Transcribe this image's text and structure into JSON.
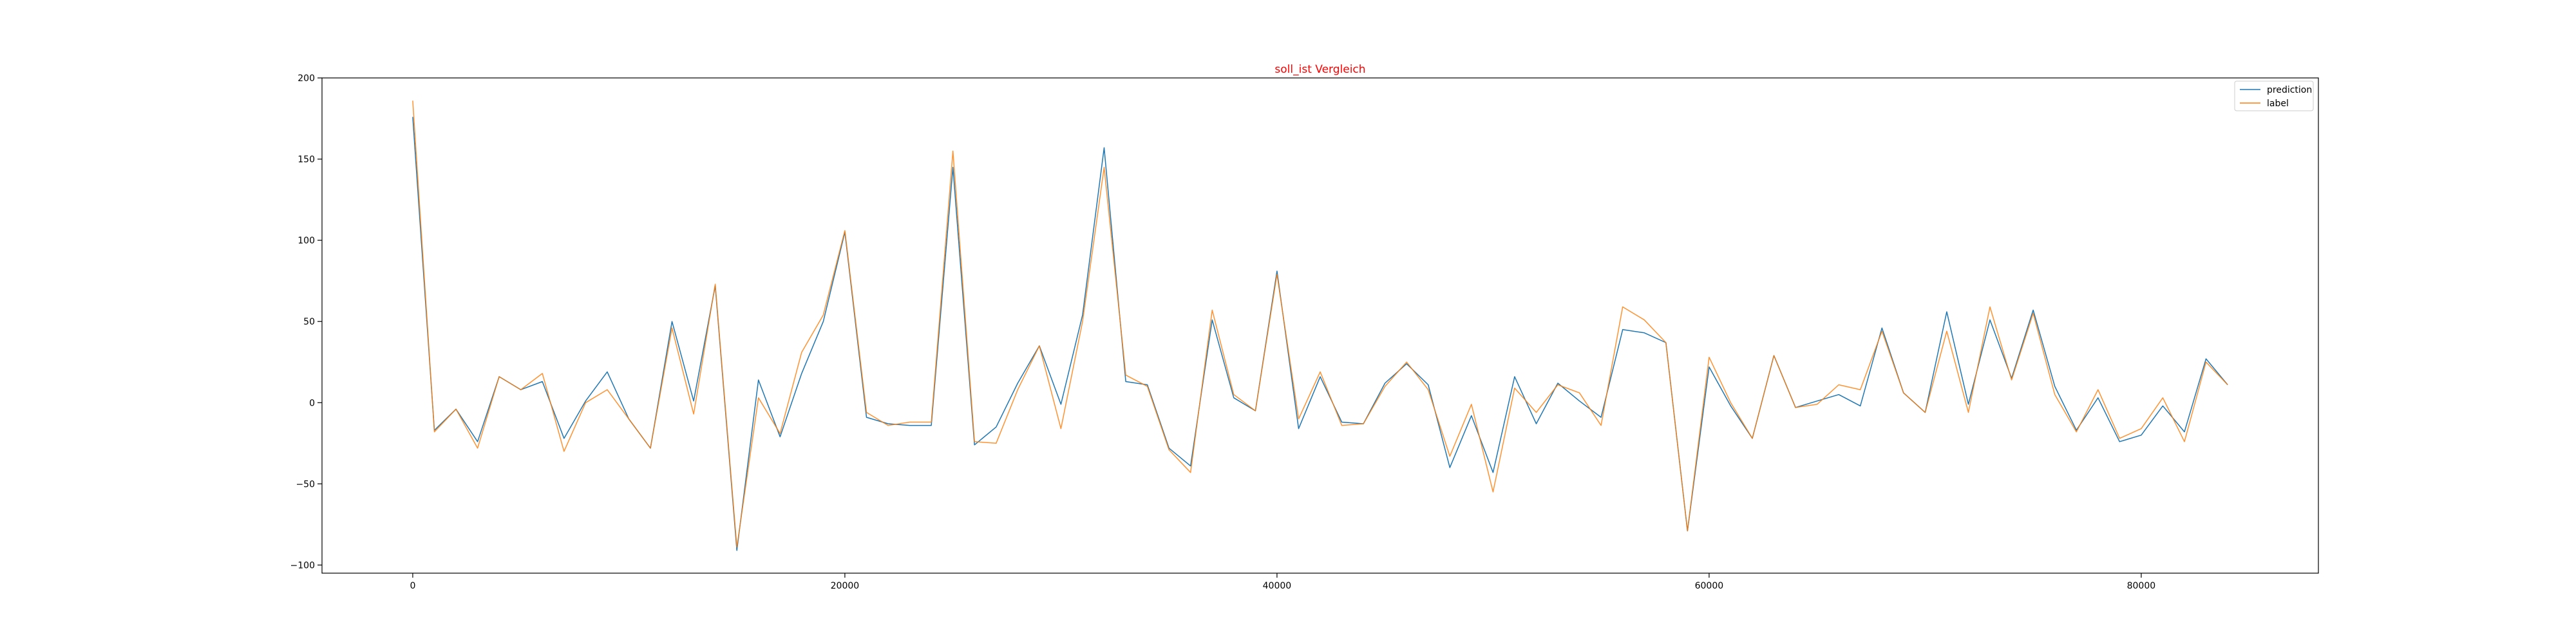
{
  "chart_data": {
    "type": "line",
    "title": "soll_ist Vergleich",
    "xlabel": "",
    "ylabel": "",
    "xlim": [
      -4200,
      88200
    ],
    "ylim": [
      -105,
      200
    ],
    "xticks": [
      0,
      20000,
      40000,
      60000,
      80000
    ],
    "yticks": [
      -100,
      -50,
      0,
      50,
      100,
      150,
      200
    ],
    "grid": false,
    "legend_position": "top-right",
    "x": [
      0,
      1000,
      2000,
      3000,
      4000,
      5000,
      6000,
      7000,
      8000,
      9000,
      10000,
      11000,
      12000,
      13000,
      14000,
      15000,
      16000,
      17000,
      18000,
      19000,
      20000,
      21000,
      22000,
      23000,
      24000,
      25000,
      26000,
      27000,
      28000,
      29000,
      30000,
      31000,
      32000,
      33000,
      34000,
      35000,
      36000,
      37000,
      38000,
      39000,
      40000,
      41000,
      42000,
      43000,
      44000,
      45000,
      46000,
      47000,
      48000,
      49000,
      50000,
      51000,
      52000,
      53000,
      54000,
      55000,
      56000,
      57000,
      58000,
      59000,
      60000,
      61000,
      62000,
      63000,
      64000,
      65000,
      66000,
      67000,
      68000,
      69000,
      70000,
      71000,
      72000,
      73000,
      74000,
      75000,
      76000,
      77000,
      78000,
      79000,
      80000,
      81000,
      82000,
      83000,
      84000
    ],
    "series": [
      {
        "name": "prediction",
        "color": "#1f77b4",
        "values": [
          176,
          -17,
          -4,
          -24,
          16,
          8,
          13,
          -22,
          1,
          19,
          -10,
          -28,
          50,
          1,
          72,
          -91,
          14,
          -21,
          18,
          50,
          105,
          -9,
          -13,
          -14,
          -14,
          145,
          -26,
          -15,
          12,
          35,
          -1,
          54,
          157,
          13,
          11,
          -28,
          -39,
          51,
          3,
          -5,
          81,
          -16,
          16,
          -12,
          -13,
          12,
          24,
          11,
          -40,
          -8,
          -43,
          16,
          -13,
          12,
          1,
          -9,
          45,
          43,
          37,
          -79,
          22,
          -2,
          -22,
          29,
          -3,
          1,
          5,
          -2,
          46,
          6,
          -6,
          56,
          -1,
          51,
          15,
          57,
          10,
          -17,
          3,
          -24,
          -20,
          -2,
          -18,
          27,
          11
        ]
      },
      {
        "name": "label",
        "color": "#ff7f0e",
        "values": [
          186,
          -18,
          -4,
          -28,
          16,
          8,
          18,
          -30,
          0,
          8,
          -10,
          -28,
          46,
          -7,
          73,
          -89,
          3,
          -19,
          31,
          54,
          106,
          -6,
          -14,
          -12,
          -12,
          155,
          -24,
          -25,
          8,
          35,
          -16,
          50,
          145,
          17,
          10,
          -29,
          -43,
          57,
          5,
          -5,
          79,
          -10,
          19,
          -14,
          -13,
          10,
          25,
          8,
          -33,
          -1,
          -55,
          9,
          -6,
          11,
          6,
          -14,
          59,
          51,
          37,
          -79,
          28,
          0,
          -22,
          29,
          -3,
          -1,
          11,
          8,
          44,
          6,
          -6,
          44,
          -6,
          59,
          14,
          55,
          5,
          -18,
          8,
          -22,
          -16,
          3,
          -24,
          25,
          11
        ]
      }
    ]
  }
}
